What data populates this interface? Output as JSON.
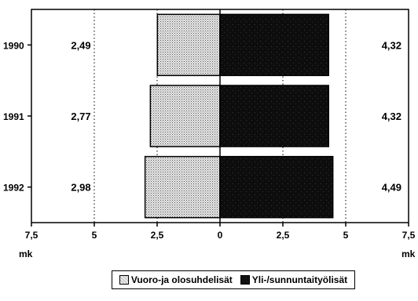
{
  "chart_data": {
    "type": "bar",
    "orientation": "horizontal",
    "categories": [
      "1990",
      "1991",
      "1992"
    ],
    "series": [
      {
        "name": "Vuoro-ja olosuhdelisät",
        "values": [
          2.49,
          2.77,
          2.98
        ],
        "labels": [
          "2,49",
          "2,77",
          "2,98"
        ],
        "side": "left",
        "color": "#cfcfcf"
      },
      {
        "name": "Yli-/sunnuntaityölisät",
        "values": [
          4.32,
          4.32,
          4.49
        ],
        "labels": [
          "4,32",
          "4,32",
          "4,49"
        ],
        "side": "right",
        "color": "#111111"
      }
    ],
    "xlim": [
      -7.5,
      7.5
    ],
    "xticks": [
      -7.5,
      -5,
      -2.5,
      0,
      2.5,
      5,
      7.5
    ],
    "xtick_labels": [
      "7,5",
      "5",
      "2,5",
      "0",
      "2,5",
      "5",
      "7,5"
    ],
    "xunit_left": "mk",
    "xunit_right": "mk",
    "grid": "vertical dotted",
    "legend_position": "bottom"
  }
}
